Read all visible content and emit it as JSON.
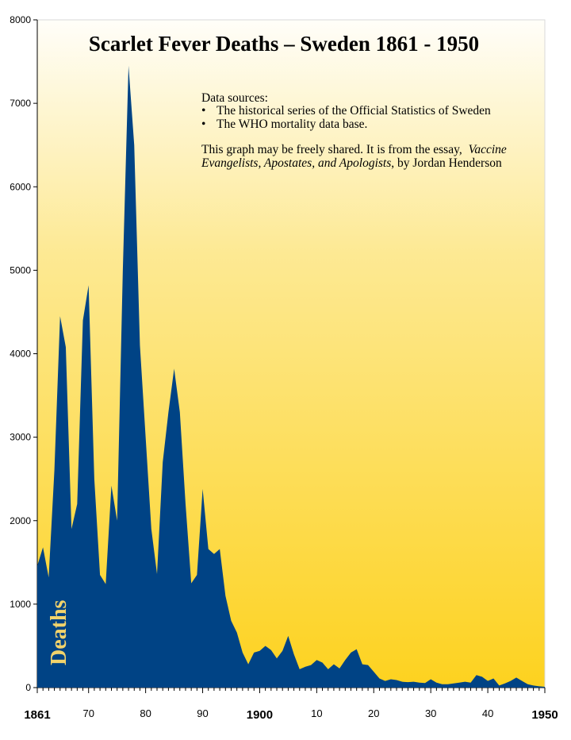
{
  "chart_data": {
    "type": "area",
    "title": "Scarlet Fever Deaths – Sweden 1861 - 1950",
    "ylabel": "Deaths",
    "xlim": [
      1861,
      1950
    ],
    "ylim": [
      0,
      8000
    ],
    "yticks": [
      0,
      1000,
      2000,
      3000,
      4000,
      5000,
      6000,
      7000,
      8000
    ],
    "xticks": [
      {
        "value": 1861,
        "label": "1861",
        "bold": true
      },
      {
        "value": 1870,
        "label": "70",
        "bold": false
      },
      {
        "value": 1880,
        "label": "80",
        "bold": false
      },
      {
        "value": 1890,
        "label": "90",
        "bold": false
      },
      {
        "value": 1900,
        "label": "1900",
        "bold": true
      },
      {
        "value": 1910,
        "label": "10",
        "bold": false
      },
      {
        "value": 1920,
        "label": "20",
        "bold": false
      },
      {
        "value": 1930,
        "label": "30",
        "bold": false
      },
      {
        "value": 1940,
        "label": "40",
        "bold": false
      },
      {
        "value": 1950,
        "label": "1950",
        "bold": true
      }
    ],
    "fill_color": "#004385",
    "background_gradient": [
      "#fffef9",
      "#fdd21f"
    ],
    "grid": false,
    "x": [
      1861,
      1862,
      1863,
      1864,
      1865,
      1866,
      1867,
      1868,
      1869,
      1870,
      1871,
      1872,
      1873,
      1874,
      1875,
      1876,
      1877,
      1878,
      1879,
      1880,
      1881,
      1882,
      1883,
      1884,
      1885,
      1886,
      1887,
      1888,
      1889,
      1890,
      1891,
      1892,
      1893,
      1894,
      1895,
      1896,
      1897,
      1898,
      1899,
      1900,
      1901,
      1902,
      1903,
      1904,
      1905,
      1906,
      1907,
      1908,
      1909,
      1910,
      1911,
      1912,
      1913,
      1914,
      1915,
      1916,
      1917,
      1918,
      1919,
      1920,
      1921,
      1922,
      1923,
      1924,
      1925,
      1926,
      1927,
      1928,
      1929,
      1930,
      1931,
      1932,
      1933,
      1934,
      1935,
      1936,
      1937,
      1938,
      1939,
      1940,
      1941,
      1942,
      1943,
      1944,
      1945,
      1946,
      1947,
      1948,
      1949,
      1950
    ],
    "values": [
      1460,
      1680,
      1320,
      2600,
      4450,
      4080,
      1900,
      2200,
      4400,
      4820,
      2500,
      1350,
      1240,
      2420,
      2000,
      5000,
      7450,
      6500,
      4100,
      3000,
      1900,
      1360,
      2700,
      3300,
      3820,
      3300,
      2200,
      1250,
      1350,
      2380,
      1660,
      1600,
      1660,
      1100,
      800,
      660,
      420,
      280,
      420,
      440,
      500,
      450,
      350,
      440,
      620,
      400,
      220,
      250,
      270,
      330,
      300,
      220,
      280,
      230,
      330,
      420,
      460,
      280,
      270,
      190,
      110,
      80,
      100,
      90,
      70,
      65,
      70,
      60,
      55,
      100,
      60,
      40,
      40,
      50,
      60,
      70,
      60,
      150,
      130,
      80,
      110,
      25,
      50,
      80,
      120,
      80,
      40,
      25,
      15,
      10
    ]
  },
  "notes": {
    "sources_heading": "Data sources:",
    "source_1": "The historical series of the Official Statistics of Sweden",
    "source_2": "The WHO mortality data base.",
    "share_line1_plain": "This graph may be freely shared. It is from the essay,",
    "share_line1_italic": "Vaccine",
    "share_line2_italic": "Evangelists, Apostates, and Apologists",
    "share_line2_plain": ", by Jordan Henderson",
    "bullet": "•"
  }
}
